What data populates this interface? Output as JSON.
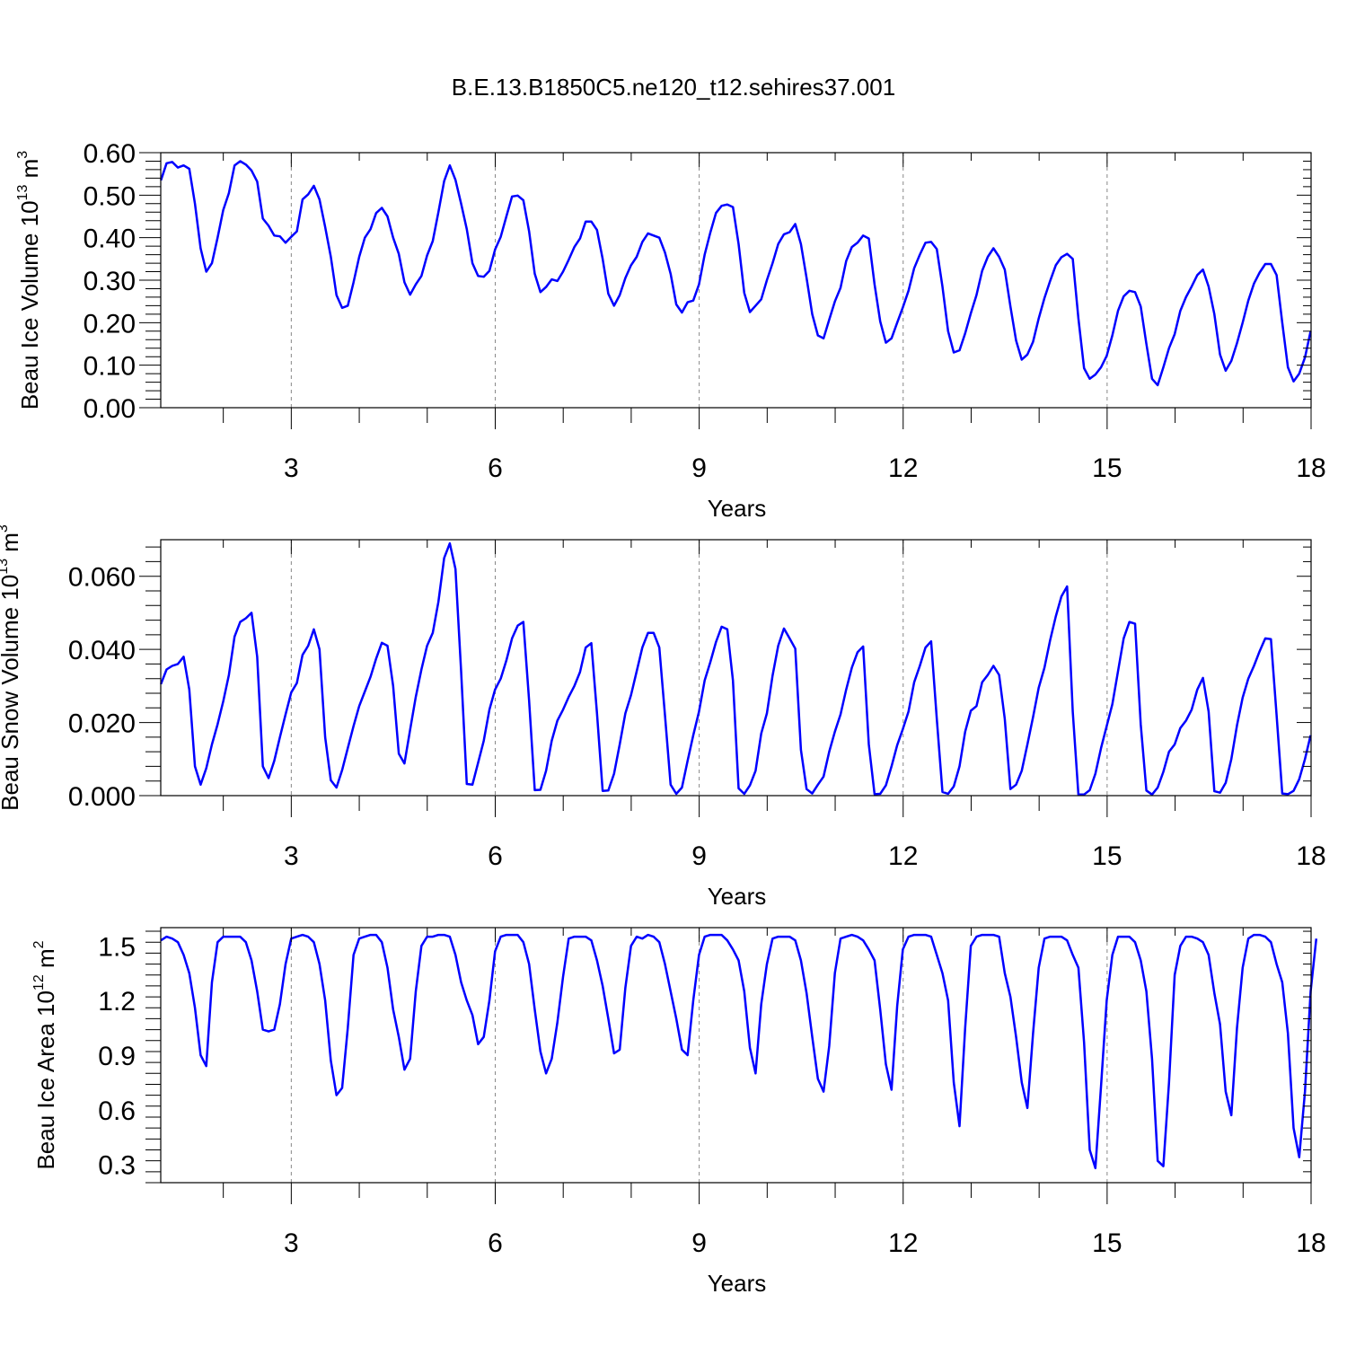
{
  "figure": {
    "title": "B.E.13.B1850C5.ne120_t12.sehires37.001",
    "line_color": "#0000ff",
    "grid_color": "#888888"
  },
  "chart_data": [
    {
      "type": "line",
      "name": "ice-volume",
      "ylabel": "Beau Ice Volume",
      "ylabel_unit": "10",
      "ylabel_exp": "13",
      "ylabel_unit2": " m",
      "ylabel_exp2": "3",
      "xlabel": "Years",
      "xlim": [
        1.08,
        18
      ],
      "ylim": [
        0,
        0.6
      ],
      "xticks": [
        3,
        6,
        9,
        12,
        15,
        18
      ],
      "xtick_labels": [
        "3",
        "6",
        "9",
        "12",
        "15",
        "18"
      ],
      "yticks": [
        0,
        0.1,
        0.2,
        0.3,
        0.4,
        0.5,
        0.6
      ],
      "ytick_labels": [
        "0.00",
        "0.10",
        "0.20",
        "0.30",
        "0.40",
        "0.50",
        "0.60"
      ],
      "grid_x": [
        3,
        6,
        9,
        12,
        15
      ],
      "x_start": 1.083,
      "x_step": 0.0833,
      "values": [
        0.535,
        0.575,
        0.578,
        0.565,
        0.57,
        0.562,
        0.48,
        0.375,
        0.32,
        0.34,
        0.4,
        0.465,
        0.505,
        0.57,
        0.58,
        0.572,
        0.558,
        0.532,
        0.445,
        0.428,
        0.405,
        0.403,
        0.388,
        0.402,
        0.415,
        0.49,
        0.502,
        0.522,
        0.49,
        0.425,
        0.355,
        0.265,
        0.235,
        0.24,
        0.295,
        0.355,
        0.4,
        0.42,
        0.458,
        0.47,
        0.45,
        0.4,
        0.362,
        0.295,
        0.266,
        0.29,
        0.31,
        0.358,
        0.392,
        0.46,
        0.533,
        0.57,
        0.536,
        0.48,
        0.42,
        0.34,
        0.31,
        0.308,
        0.322,
        0.372,
        0.402,
        0.45,
        0.497,
        0.499,
        0.488,
        0.415,
        0.315,
        0.272,
        0.284,
        0.302,
        0.298,
        0.32,
        0.348,
        0.378,
        0.398,
        0.438,
        0.438,
        0.418,
        0.35,
        0.268,
        0.24,
        0.265,
        0.305,
        0.335,
        0.355,
        0.39,
        0.41,
        0.405,
        0.4,
        0.365,
        0.315,
        0.243,
        0.224,
        0.248,
        0.252,
        0.29,
        0.36,
        0.412,
        0.458,
        0.475,
        0.478,
        0.472,
        0.385,
        0.27,
        0.225,
        0.24,
        0.255,
        0.3,
        0.34,
        0.385,
        0.408,
        0.413,
        0.432,
        0.385,
        0.305,
        0.22,
        0.17,
        0.163,
        0.207,
        0.25,
        0.282,
        0.345,
        0.378,
        0.388,
        0.405,
        0.398,
        0.29,
        0.203,
        0.153,
        0.163,
        0.2,
        0.236,
        0.275,
        0.328,
        0.36,
        0.388,
        0.39,
        0.373,
        0.285,
        0.18,
        0.13,
        0.135,
        0.175,
        0.222,
        0.265,
        0.322,
        0.355,
        0.375,
        0.355,
        0.325,
        0.238,
        0.158,
        0.113,
        0.125,
        0.155,
        0.21,
        0.258,
        0.298,
        0.335,
        0.354,
        0.362,
        0.35,
        0.21,
        0.093,
        0.068,
        0.078,
        0.095,
        0.122,
        0.17,
        0.228,
        0.262,
        0.275,
        0.272,
        0.238,
        0.15,
        0.068,
        0.053,
        0.095,
        0.14,
        0.173,
        0.228,
        0.26,
        0.285,
        0.312,
        0.325,
        0.285,
        0.22,
        0.125,
        0.087,
        0.11,
        0.152,
        0.2,
        0.252,
        0.292,
        0.318,
        0.338,
        0.338,
        0.312,
        0.2,
        0.095,
        0.062,
        0.08,
        0.118,
        0.18
      ]
    },
    {
      "type": "line",
      "name": "snow-volume",
      "ylabel": "Beau Snow Volume",
      "ylabel_unit": "10",
      "ylabel_exp": "13",
      "ylabel_unit2": " m",
      "ylabel_exp2": "3",
      "xlabel": "Years",
      "xlim": [
        1.08,
        18
      ],
      "ylim": [
        0,
        0.07
      ],
      "xticks": [
        3,
        6,
        9,
        12,
        15,
        18
      ],
      "xtick_labels": [
        "3",
        "6",
        "9",
        "12",
        "15",
        "18"
      ],
      "yticks": [
        0,
        0.02,
        0.04,
        0.06
      ],
      "ytick_labels": [
        "0.000",
        "0.020",
        "0.040",
        "0.060"
      ],
      "grid_x": [
        3,
        6,
        9,
        12,
        15
      ],
      "x_start": 1.083,
      "x_step": 0.0833,
      "values": [
        0.0305,
        0.0345,
        0.0355,
        0.036,
        0.038,
        0.029,
        0.008,
        0.003,
        0.0075,
        0.014,
        0.0195,
        0.0258,
        0.033,
        0.0435,
        0.0475,
        0.0485,
        0.05,
        0.038,
        0.008,
        0.0048,
        0.0095,
        0.016,
        0.0222,
        0.0282,
        0.0308,
        0.0385,
        0.041,
        0.0455,
        0.04,
        0.016,
        0.0042,
        0.0022,
        0.007,
        0.013,
        0.019,
        0.0245,
        0.0285,
        0.0325,
        0.0375,
        0.0418,
        0.041,
        0.03,
        0.0115,
        0.0088,
        0.018,
        0.027,
        0.0345,
        0.041,
        0.0445,
        0.053,
        0.065,
        0.069,
        0.062,
        0.034,
        0.0032,
        0.003,
        0.009,
        0.015,
        0.0235,
        0.029,
        0.032,
        0.037,
        0.043,
        0.0465,
        0.0475,
        0.026,
        0.0015,
        0.0016,
        0.0068,
        0.015,
        0.0205,
        0.0235,
        0.027,
        0.03,
        0.0338,
        0.0405,
        0.0417,
        0.0225,
        0.0013,
        0.0014,
        0.006,
        0.014,
        0.0225,
        0.0275,
        0.034,
        0.0405,
        0.0445,
        0.0445,
        0.0405,
        0.022,
        0.003,
        0.0005,
        0.0022,
        0.0095,
        0.0165,
        0.023,
        0.0315,
        0.0365,
        0.042,
        0.0462,
        0.0455,
        0.0315,
        0.002,
        0.0005,
        0.0028,
        0.0068,
        0.017,
        0.0225,
        0.0328,
        0.041,
        0.0457,
        0.043,
        0.0402,
        0.0125,
        0.0018,
        0.0006,
        0.003,
        0.0052,
        0.012,
        0.0175,
        0.0222,
        0.029,
        0.035,
        0.0392,
        0.0408,
        0.014,
        0.0004,
        0.0005,
        0.0028,
        0.008,
        0.0138,
        0.0182,
        0.023,
        0.031,
        0.0355,
        0.0405,
        0.0422,
        0.021,
        0.001,
        0.0005,
        0.0025,
        0.008,
        0.0175,
        0.0232,
        0.0245,
        0.031,
        0.033,
        0.0355,
        0.033,
        0.021,
        0.0018,
        0.003,
        0.0068,
        0.014,
        0.0215,
        0.0295,
        0.035,
        0.0425,
        0.049,
        0.0545,
        0.0572,
        0.023,
        0.0003,
        0.0003,
        0.0015,
        0.006,
        0.013,
        0.019,
        0.025,
        0.034,
        0.043,
        0.0475,
        0.047,
        0.0195,
        0.0014,
        0.0003,
        0.0022,
        0.0065,
        0.012,
        0.014,
        0.0185,
        0.0205,
        0.0235,
        0.029,
        0.0322,
        0.023,
        0.0012,
        0.0008,
        0.0035,
        0.01,
        0.0192,
        0.0268,
        0.032,
        0.0355,
        0.0395,
        0.043,
        0.0428,
        0.022,
        0.0006,
        0.0004,
        0.0013,
        0.0045,
        0.01,
        0.0165
      ]
    },
    {
      "type": "line",
      "name": "ice-area",
      "ylabel": "Beau Ice Area",
      "ylabel_unit": "10",
      "ylabel_exp": "12",
      "ylabel_unit2": " m",
      "ylabel_exp2": "2",
      "xlabel": "Years",
      "xlim": [
        1.08,
        18
      ],
      "ylim": [
        0.2,
        1.6
      ],
      "xticks": [
        3,
        6,
        9,
        12,
        15,
        18
      ],
      "xtick_labels": [
        "3",
        "6",
        "9",
        "12",
        "15",
        "18"
      ],
      "yticks": [
        0.3,
        0.6,
        0.9,
        1.2,
        1.5
      ],
      "ytick_labels": [
        "0.3",
        "0.6",
        "0.9",
        "1.2",
        "1.5"
      ],
      "grid_x": [
        3,
        6,
        9,
        12,
        15
      ],
      "x_start": 1.083,
      "x_step": 0.0833,
      "values": [
        1.53,
        1.55,
        1.54,
        1.52,
        1.45,
        1.35,
        1.16,
        0.9,
        0.84,
        1.3,
        1.52,
        1.55,
        1.55,
        1.55,
        1.55,
        1.52,
        1.42,
        1.25,
        1.04,
        1.03,
        1.04,
        1.18,
        1.4,
        1.54,
        1.55,
        1.56,
        1.55,
        1.52,
        1.4,
        1.2,
        0.87,
        0.68,
        0.72,
        1.05,
        1.45,
        1.54,
        1.55,
        1.56,
        1.56,
        1.52,
        1.38,
        1.15,
        1.0,
        0.82,
        0.88,
        1.25,
        1.5,
        1.55,
        1.55,
        1.56,
        1.56,
        1.55,
        1.45,
        1.3,
        1.2,
        1.12,
        0.96,
        1.0,
        1.2,
        1.47,
        1.55,
        1.56,
        1.56,
        1.56,
        1.52,
        1.4,
        1.15,
        0.92,
        0.8,
        0.88,
        1.08,
        1.33,
        1.54,
        1.55,
        1.55,
        1.55,
        1.53,
        1.42,
        1.28,
        1.1,
        0.91,
        0.93,
        1.27,
        1.5,
        1.55,
        1.54,
        1.56,
        1.55,
        1.52,
        1.4,
        1.25,
        1.1,
        0.93,
        0.9,
        1.2,
        1.45,
        1.55,
        1.56,
        1.56,
        1.56,
        1.53,
        1.48,
        1.42,
        1.25,
        0.94,
        0.8,
        1.18,
        1.4,
        1.54,
        1.55,
        1.55,
        1.55,
        1.53,
        1.42,
        1.24,
        1.0,
        0.77,
        0.7,
        0.95,
        1.35,
        1.54,
        1.55,
        1.56,
        1.55,
        1.53,
        1.48,
        1.42,
        1.15,
        0.85,
        0.71,
        1.17,
        1.48,
        1.55,
        1.56,
        1.56,
        1.56,
        1.55,
        1.45,
        1.35,
        1.2,
        0.75,
        0.51,
        1.05,
        1.5,
        1.55,
        1.56,
        1.56,
        1.56,
        1.55,
        1.35,
        1.22,
        1.0,
        0.75,
        0.61,
        1.02,
        1.38,
        1.54,
        1.55,
        1.55,
        1.55,
        1.53,
        1.45,
        1.38,
        0.97,
        0.38,
        0.28,
        0.73,
        1.2,
        1.45,
        1.55,
        1.55,
        1.55,
        1.52,
        1.42,
        1.25,
        0.88,
        0.32,
        0.29,
        0.75,
        1.34,
        1.5,
        1.55,
        1.55,
        1.54,
        1.52,
        1.45,
        1.24,
        1.07,
        0.7,
        0.57,
        1.05,
        1.38,
        1.54,
        1.56,
        1.56,
        1.55,
        1.52,
        1.4,
        1.3,
        1.02,
        0.5,
        0.34,
        0.7,
        1.25,
        1.54
      ]
    }
  ]
}
